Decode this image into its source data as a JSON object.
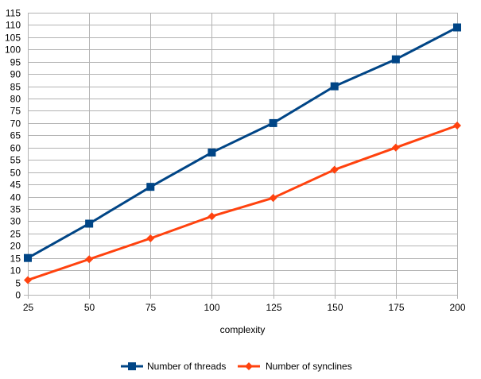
{
  "chart_data": {
    "type": "line",
    "title": "",
    "xlabel": "complexity",
    "ylabel": "",
    "categories": [
      "25",
      "50",
      "75",
      "100",
      "125",
      "150",
      "175",
      "200"
    ],
    "ylim": [
      0,
      115
    ],
    "ytick_step": 5,
    "grid": true,
    "legend_position": "bottom",
    "series": [
      {
        "name": "Number of threads",
        "color": "#004586",
        "marker": "square",
        "values": [
          15,
          29,
          44,
          58,
          70,
          85,
          96,
          109
        ]
      },
      {
        "name": "Number of synclines",
        "color": "#ff420e",
        "marker": "diamond",
        "values": [
          6,
          14.5,
          23,
          32,
          39.5,
          51,
          60,
          69
        ]
      }
    ]
  }
}
